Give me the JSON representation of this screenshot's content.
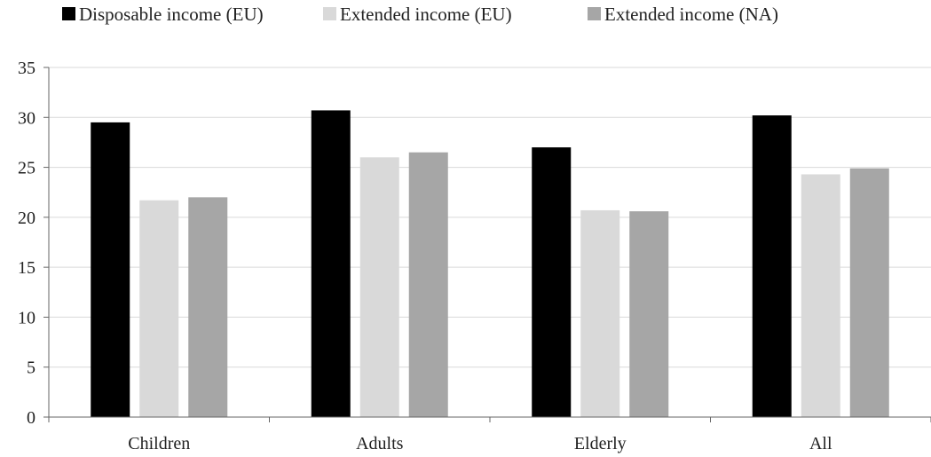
{
  "chart_data": {
    "type": "bar",
    "title": "",
    "xlabel": "",
    "ylabel": "",
    "categories": [
      "Children",
      "Adults",
      "Elderly",
      "All"
    ],
    "series": [
      {
        "name": "Disposable income (EU)",
        "color": "#000000",
        "values": [
          29.5,
          30.7,
          27.0,
          30.2
        ]
      },
      {
        "name": "Extended income (EU)",
        "color": "#d9d9d9",
        "values": [
          21.7,
          26.0,
          20.7,
          24.3
        ]
      },
      {
        "name": "Extended income (NA)",
        "color": "#a6a6a6",
        "values": [
          22.0,
          26.5,
          20.6,
          24.9
        ]
      }
    ],
    "ylim": [
      0,
      35
    ],
    "yticks": [
      0,
      5,
      10,
      15,
      20,
      25,
      30,
      35
    ],
    "grid": true,
    "legend_position": "top-left"
  }
}
